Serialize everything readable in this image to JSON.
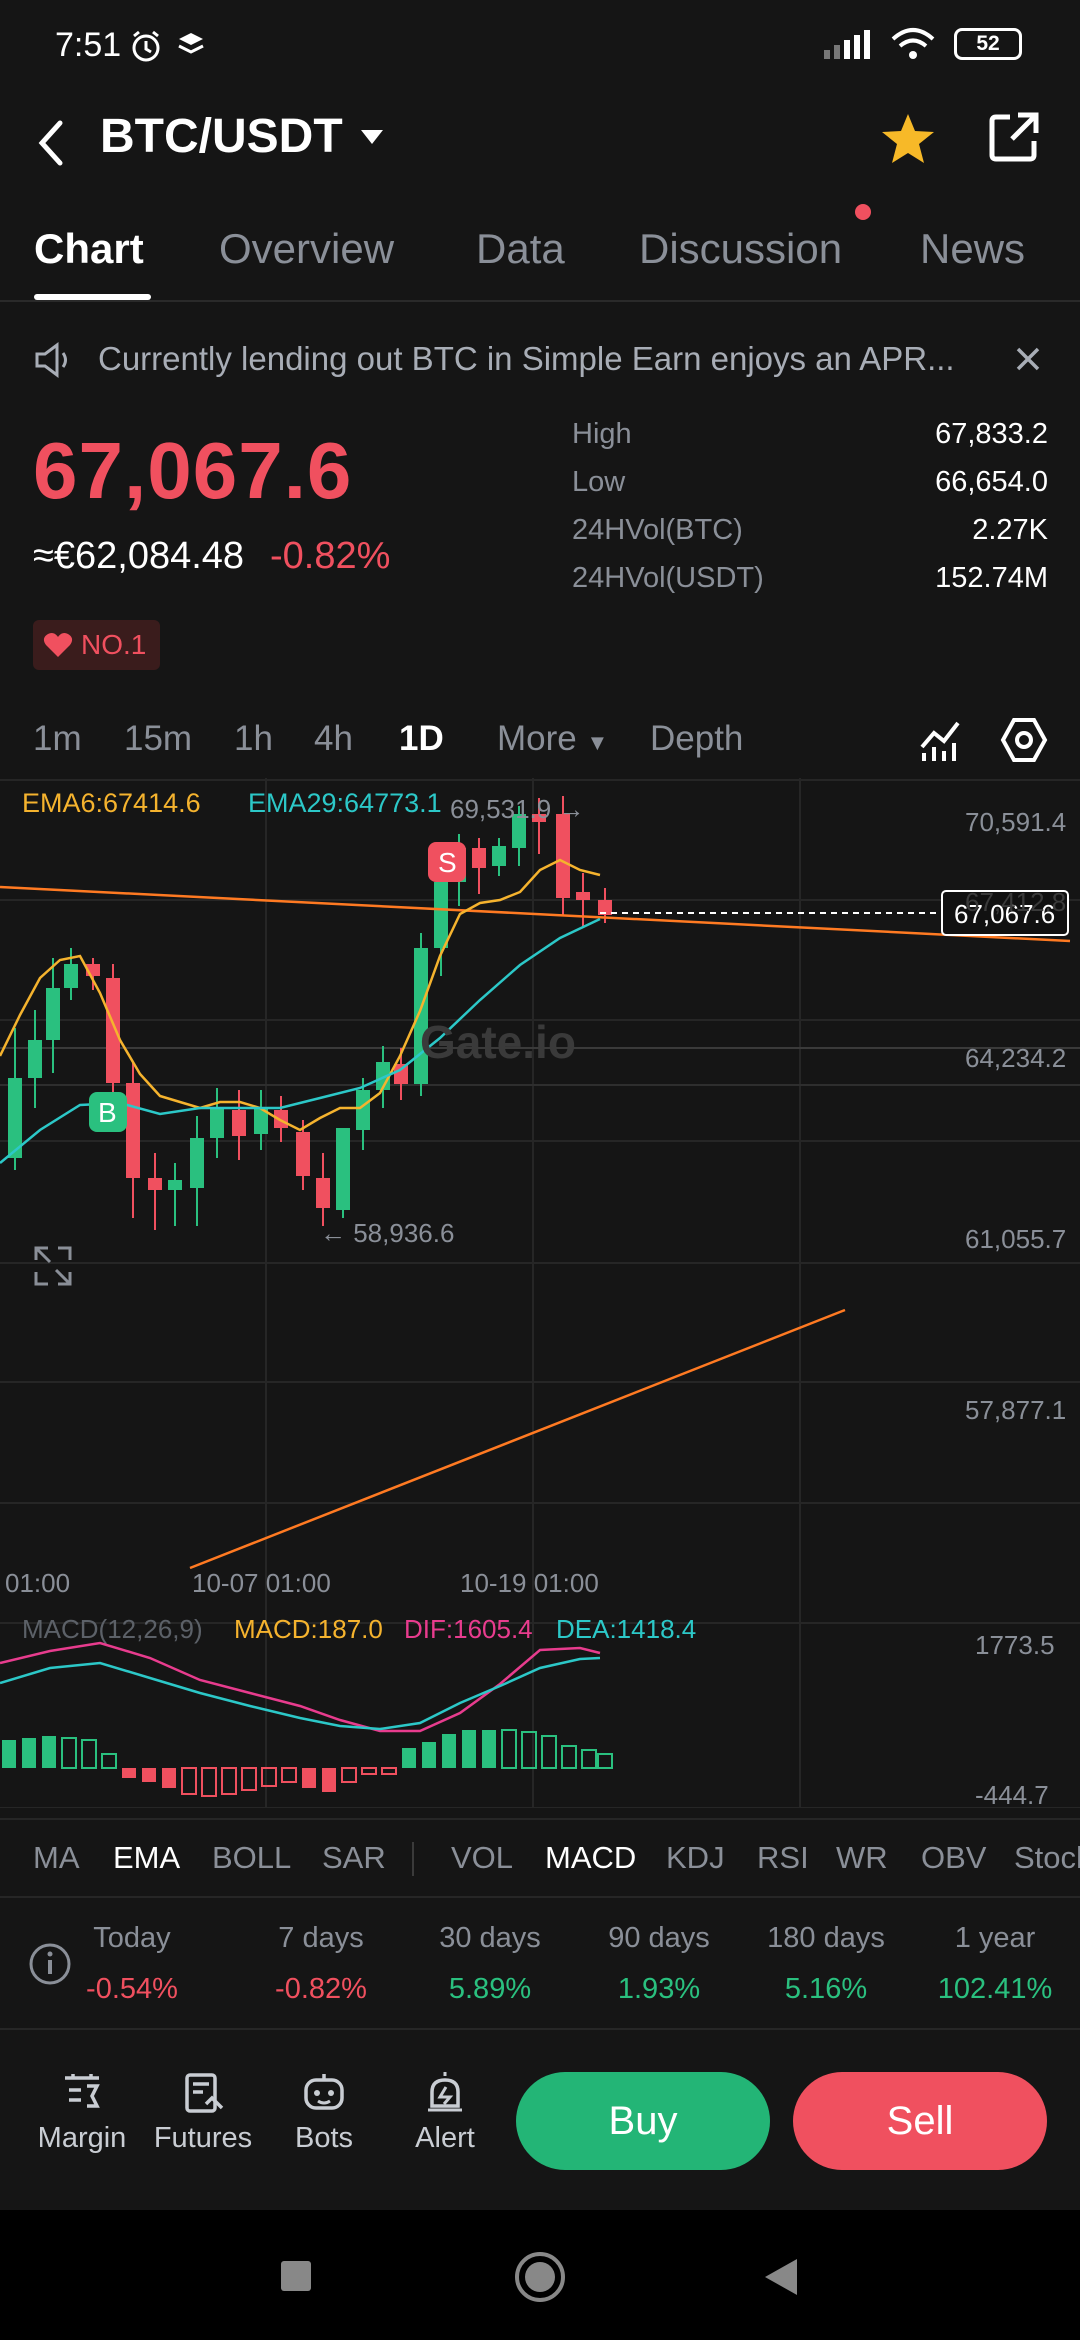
{
  "status_bar": {
    "time": "7:51",
    "battery": "52"
  },
  "header": {
    "pair": "BTC/USDT"
  },
  "tabs": [
    {
      "label": "Chart"
    },
    {
      "label": "Overview"
    },
    {
      "label": "Data"
    },
    {
      "label": "Discussion"
    },
    {
      "label": "News"
    }
  ],
  "notice": {
    "text": "Currently lending out BTC in Simple Earn enjoys an APR..."
  },
  "price": {
    "last": "67,067.6",
    "fiat": "≈€62,084.48",
    "change": "-0.82%",
    "badge": "NO.1"
  },
  "stats": [
    {
      "label": "High",
      "value": "67,833.2"
    },
    {
      "label": "Low",
      "value": "66,654.0"
    },
    {
      "label": "24HVol(BTC)",
      "value": "2.27K"
    },
    {
      "label": "24HVol(USDT)",
      "value": "152.74M"
    }
  ],
  "timeframes": [
    "1m",
    "15m",
    "1h",
    "4h",
    "1D",
    "More",
    "Depth"
  ],
  "ema": {
    "ema6": "EMA6:67414.6",
    "ema29": "EMA29:64773.1"
  },
  "chart_data": {
    "type": "candlestick",
    "y_ticks": [
      "70,591.4",
      "67,412.8",
      "64,234.2",
      "61,055.7",
      "57,877.1"
    ],
    "x_ticks": [
      "01:00",
      "10-07 01:00",
      "10-19 01:00"
    ],
    "current_price_label": "67,067.6",
    "high_marker": "69,531.9 →",
    "low_marker": "← 58,936.6",
    "signals": [
      "S",
      "B"
    ],
    "watermark": "Gate.io",
    "macd": {
      "title": "MACD(12,26,9)",
      "macd": "MACD:187.0",
      "dif": "DIF:1605.4",
      "dea": "DEA:1418.4",
      "y_ticks": [
        "1773.5",
        "-444.7"
      ]
    },
    "colors": {
      "up": "#2ac07f",
      "down": "#f0505f",
      "ema6": "#f5b32e",
      "ema29": "#2cc8c8",
      "trend": "#ff7a22",
      "dif": "#e83c8e"
    }
  },
  "indicators": [
    "MA",
    "EMA",
    "BOLL",
    "SAR",
    "VOL",
    "MACD",
    "KDJ",
    "RSI",
    "WR",
    "OBV",
    "Stoch"
  ],
  "performance": [
    {
      "label": "Today",
      "value": "-0.54%"
    },
    {
      "label": "7 days",
      "value": "-0.82%"
    },
    {
      "label": "30 days",
      "value": "5.89%"
    },
    {
      "label": "90 days",
      "value": "1.93%"
    },
    {
      "label": "180 days",
      "value": "5.16%"
    },
    {
      "label": "1 year",
      "value": "102.41%"
    }
  ],
  "actions": [
    {
      "label": "Margin"
    },
    {
      "label": "Futures"
    },
    {
      "label": "Bots"
    },
    {
      "label": "Alert"
    }
  ],
  "buttons": {
    "buy": "Buy",
    "sell": "Sell"
  }
}
